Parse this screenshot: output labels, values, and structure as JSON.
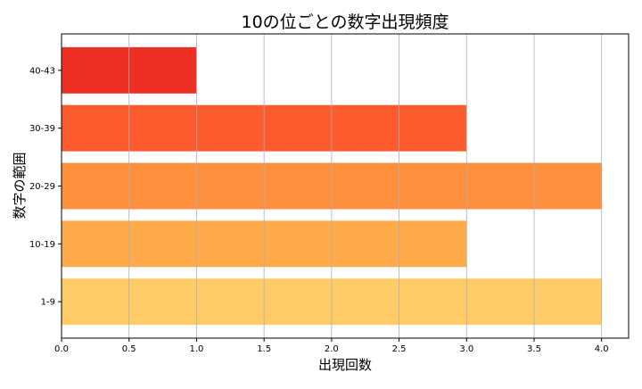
{
  "chart_data": {
    "type": "bar",
    "orientation": "horizontal",
    "title": "10の位ごとの数字出現頻度",
    "xlabel": "出現回数",
    "ylabel": "数字の範囲",
    "categories": [
      "1-9",
      "10-19",
      "20-29",
      "30-39",
      "40-43"
    ],
    "values": [
      4,
      3,
      4,
      3,
      1
    ],
    "colors": [
      "#fecb67",
      "#feaa4a",
      "#fd8f3d",
      "#fc5b2e",
      "#ee2f23"
    ],
    "xlim": [
      0,
      4.2
    ],
    "xticks": [
      "0.0",
      "0.5",
      "1.0",
      "1.5",
      "2.0",
      "2.5",
      "3.0",
      "3.5",
      "4.0"
    ],
    "grid": "x"
  }
}
